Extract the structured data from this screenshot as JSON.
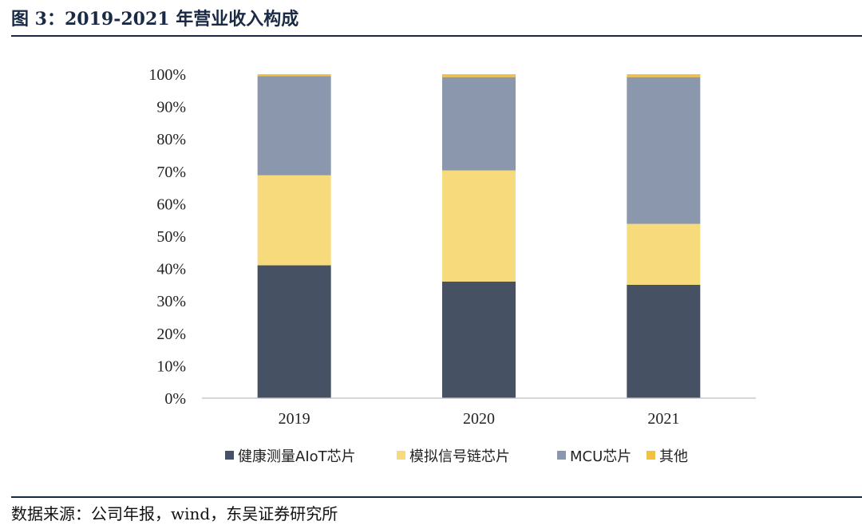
{
  "header": {
    "title": "图 3：2019-2021 年营业收入构成"
  },
  "footer": {
    "source": "数据来源：公司年报，wind，东吴证券研究所"
  },
  "chart_data": {
    "type": "bar",
    "stacked": true,
    "title": "2019-2021 年营业收入构成",
    "categories": [
      "2019",
      "2020",
      "2021"
    ],
    "series": [
      {
        "name": "健康测量AIoT芯片",
        "values": [
          41,
          36,
          35
        ],
        "color": "#465264"
      },
      {
        "name": "模拟信号链芯片",
        "values": [
          27.8,
          34.3,
          18.8
        ],
        "color": "#f7da7b"
      },
      {
        "name": "MCU芯片",
        "values": [
          30.6,
          28.8,
          45.3
        ],
        "color": "#8a97ad"
      },
      {
        "name": "其他",
        "values": [
          0.6,
          0.9,
          0.9
        ],
        "color": "#f0c143"
      }
    ],
    "yticks": [
      "0%",
      "10%",
      "20%",
      "30%",
      "40%",
      "50%",
      "60%",
      "70%",
      "80%",
      "90%",
      "100%"
    ],
    "ylim": [
      0,
      100
    ],
    "legend": "bottom",
    "grid": false
  }
}
